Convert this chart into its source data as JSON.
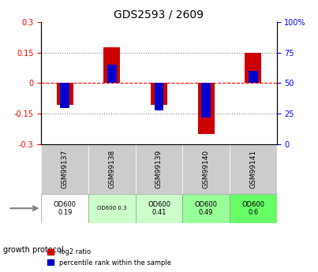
{
  "title": "GDS2593 / 2609",
  "samples": [
    "GSM99137",
    "GSM99138",
    "GSM99139",
    "GSM99140",
    "GSM99141"
  ],
  "log2_ratio": [
    -0.105,
    0.175,
    -0.105,
    -0.25,
    0.15
  ],
  "percentile_rank": [
    30,
    65,
    28,
    22,
    60
  ],
  "ylim_left": [
    -0.3,
    0.3
  ],
  "ylim_right": [
    0,
    100
  ],
  "yticks_left": [
    -0.3,
    -0.15,
    0,
    0.15,
    0.3
  ],
  "yticks_right": [
    0,
    25,
    50,
    75,
    100
  ],
  "bar_color_red": "#cc0000",
  "bar_color_blue": "#0000cc",
  "bar_width": 0.35,
  "blue_bar_width": 0.2,
  "growth_protocol_label": "growth protocol",
  "growth_values": [
    "OD600\n0.19",
    "OD600 0.3",
    "OD600\n0.41",
    "OD600\n0.49",
    "OD600\n0.6"
  ],
  "growth_bg_colors": [
    "#ffffff",
    "#ccffcc",
    "#ccffcc",
    "#99ff99",
    "#66ff66"
  ],
  "cell_bg": "#cccccc",
  "legend_red_label": "log2 ratio",
  "legend_blue_label": "percentile rank within the sample"
}
